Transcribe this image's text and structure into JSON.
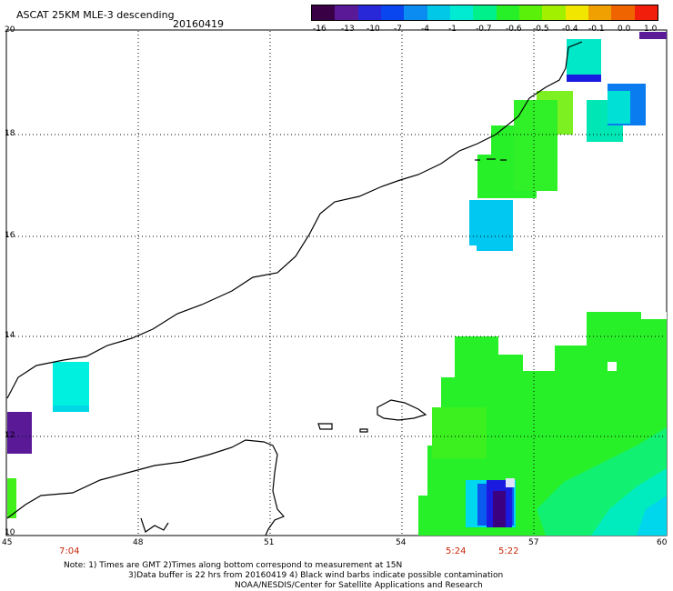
{
  "header": {
    "title": "ASCAT 25KM MLE-3 descending",
    "date": "20160419"
  },
  "colorbar": {
    "colors": [
      "#3a0046",
      "#5a1a98",
      "#2828d8",
      "#0a46f0",
      "#0a8cf0",
      "#00c8e6",
      "#00ebd2",
      "#00f08c",
      "#28f028",
      "#5af00a",
      "#a0f000",
      "#f0e600",
      "#f0a000",
      "#f06400",
      "#f01e0a"
    ],
    "labels": [
      "-16",
      "-13",
      "-10",
      "-7",
      "-4",
      "-1",
      "-0.7",
      "-0.6",
      "-0.5",
      "-0.4",
      "-0.1",
      "0.0",
      "1.0"
    ]
  },
  "axes": {
    "x_ticks": [
      "45",
      "48",
      "51",
      "54",
      "57",
      "60"
    ],
    "y_ticks": [
      "20",
      "18",
      "16",
      "14",
      "12",
      "10"
    ]
  },
  "time_labels": [
    "7:04",
    "5:24",
    "5:22"
  ],
  "notes": [
    "Note: 1) Times are GMT 2)Times along bottom correspond to measurement at 15N",
    "3)Data buffer is 22 hrs from 20160419 4) Black wind barbs indicate possible contamination",
    "NOAA/NESDIS/Center for Satellite Applications and Research"
  ]
}
